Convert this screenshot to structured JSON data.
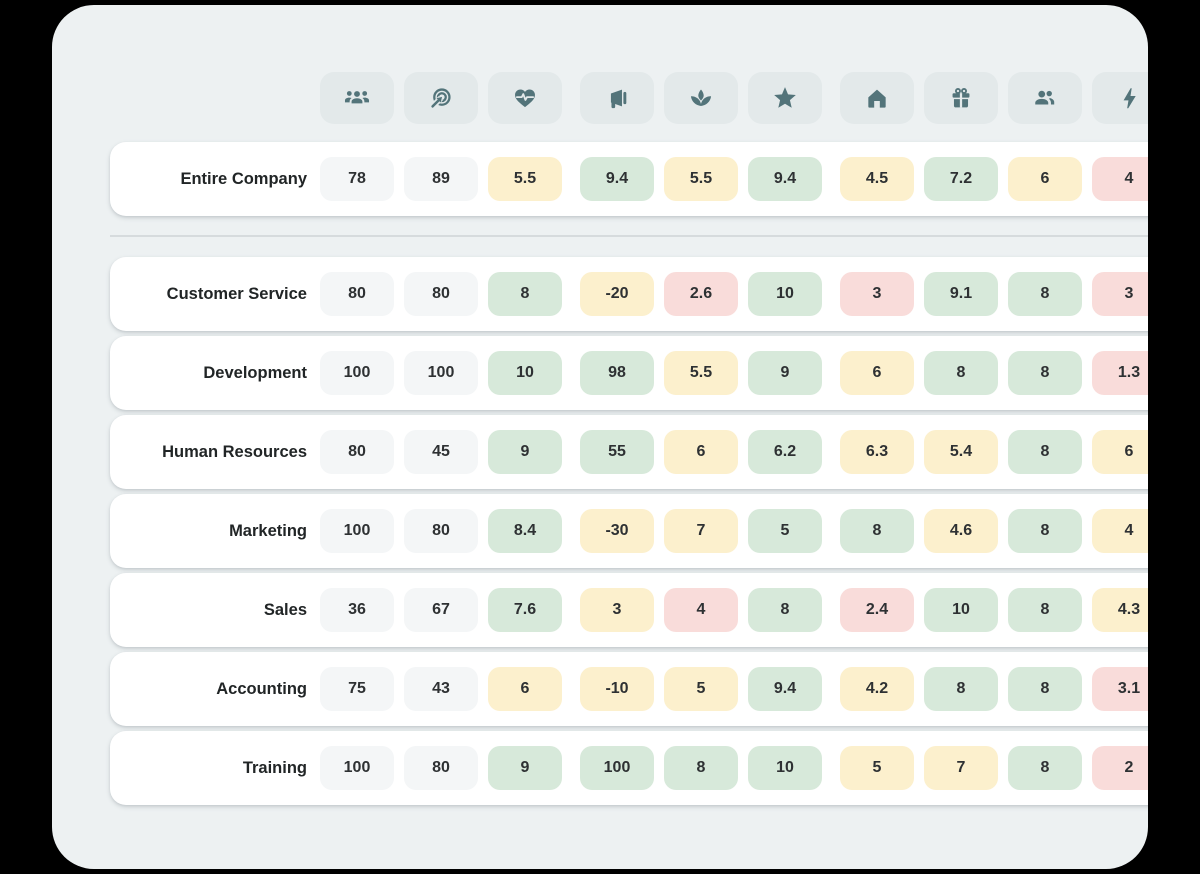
{
  "theme": {
    "background": "#000000",
    "panel_bg": "#edf1f2",
    "tile_bg": "#e3e9ea",
    "icon_color": "#53747a",
    "row_bg": "#ffffff",
    "divider_color": "#d6dbdd",
    "tone_colors": {
      "neutral": "#f4f6f7",
      "good": "#d7e9da",
      "warn": "#fcf0cd",
      "bad": "#f9dcda"
    }
  },
  "header": {
    "columns": [
      {
        "icon": "groups-icon",
        "group_start": false
      },
      {
        "icon": "target-icon",
        "group_start": false
      },
      {
        "icon": "heart-pulse-icon",
        "group_start": false
      },
      {
        "icon": "megaphone-icon",
        "group_start": true
      },
      {
        "icon": "spa-icon",
        "group_start": false
      },
      {
        "icon": "star-icon",
        "group_start": false
      },
      {
        "icon": "home-icon",
        "group_start": true
      },
      {
        "icon": "gift-icon",
        "group_start": false
      },
      {
        "icon": "people-icon",
        "group_start": false
      },
      {
        "icon": "bolt-icon",
        "group_start": false
      }
    ]
  },
  "rows": {
    "summary": {
      "label": "Entire Company",
      "cells": [
        {
          "value": "78",
          "tone": "neutral"
        },
        {
          "value": "89",
          "tone": "neutral"
        },
        {
          "value": "5.5",
          "tone": "warn"
        },
        {
          "value": "9.4",
          "tone": "good"
        },
        {
          "value": "5.5",
          "tone": "warn"
        },
        {
          "value": "9.4",
          "tone": "good"
        },
        {
          "value": "4.5",
          "tone": "warn"
        },
        {
          "value": "7.2",
          "tone": "good"
        },
        {
          "value": "6",
          "tone": "warn"
        },
        {
          "value": "4",
          "tone": "bad"
        }
      ]
    },
    "departments": [
      {
        "label": "Customer Service",
        "cells": [
          {
            "value": "80",
            "tone": "neutral"
          },
          {
            "value": "80",
            "tone": "neutral"
          },
          {
            "value": "8",
            "tone": "good"
          },
          {
            "value": "-20",
            "tone": "warn"
          },
          {
            "value": "2.6",
            "tone": "bad"
          },
          {
            "value": "10",
            "tone": "good"
          },
          {
            "value": "3",
            "tone": "bad"
          },
          {
            "value": "9.1",
            "tone": "good"
          },
          {
            "value": "8",
            "tone": "good"
          },
          {
            "value": "3",
            "tone": "bad"
          }
        ]
      },
      {
        "label": "Development",
        "cells": [
          {
            "value": "100",
            "tone": "neutral"
          },
          {
            "value": "100",
            "tone": "neutral"
          },
          {
            "value": "10",
            "tone": "good"
          },
          {
            "value": "98",
            "tone": "good"
          },
          {
            "value": "5.5",
            "tone": "warn"
          },
          {
            "value": "9",
            "tone": "good"
          },
          {
            "value": "6",
            "tone": "warn"
          },
          {
            "value": "8",
            "tone": "good"
          },
          {
            "value": "8",
            "tone": "good"
          },
          {
            "value": "1.3",
            "tone": "bad"
          }
        ]
      },
      {
        "label": "Human Resources",
        "cells": [
          {
            "value": "80",
            "tone": "neutral"
          },
          {
            "value": "45",
            "tone": "neutral"
          },
          {
            "value": "9",
            "tone": "good"
          },
          {
            "value": "55",
            "tone": "good"
          },
          {
            "value": "6",
            "tone": "warn"
          },
          {
            "value": "6.2",
            "tone": "good"
          },
          {
            "value": "6.3",
            "tone": "warn"
          },
          {
            "value": "5.4",
            "tone": "warn"
          },
          {
            "value": "8",
            "tone": "good"
          },
          {
            "value": "6",
            "tone": "warn"
          }
        ]
      },
      {
        "label": "Marketing",
        "cells": [
          {
            "value": "100",
            "tone": "neutral"
          },
          {
            "value": "80",
            "tone": "neutral"
          },
          {
            "value": "8.4",
            "tone": "good"
          },
          {
            "value": "-30",
            "tone": "warn"
          },
          {
            "value": "7",
            "tone": "warn"
          },
          {
            "value": "5",
            "tone": "good"
          },
          {
            "value": "8",
            "tone": "good"
          },
          {
            "value": "4.6",
            "tone": "warn"
          },
          {
            "value": "8",
            "tone": "good"
          },
          {
            "value": "4",
            "tone": "warn"
          }
        ]
      },
      {
        "label": "Sales",
        "cells": [
          {
            "value": "36",
            "tone": "neutral"
          },
          {
            "value": "67",
            "tone": "neutral"
          },
          {
            "value": "7.6",
            "tone": "good"
          },
          {
            "value": "3",
            "tone": "warn"
          },
          {
            "value": "4",
            "tone": "bad"
          },
          {
            "value": "8",
            "tone": "good"
          },
          {
            "value": "2.4",
            "tone": "bad"
          },
          {
            "value": "10",
            "tone": "good"
          },
          {
            "value": "8",
            "tone": "good"
          },
          {
            "value": "4.3",
            "tone": "warn"
          }
        ]
      },
      {
        "label": "Accounting",
        "cells": [
          {
            "value": "75",
            "tone": "neutral"
          },
          {
            "value": "43",
            "tone": "neutral"
          },
          {
            "value": "6",
            "tone": "warn"
          },
          {
            "value": "-10",
            "tone": "warn"
          },
          {
            "value": "5",
            "tone": "warn"
          },
          {
            "value": "9.4",
            "tone": "good"
          },
          {
            "value": "4.2",
            "tone": "warn"
          },
          {
            "value": "8",
            "tone": "good"
          },
          {
            "value": "8",
            "tone": "good"
          },
          {
            "value": "3.1",
            "tone": "bad"
          }
        ]
      },
      {
        "label": "Training",
        "cells": [
          {
            "value": "100",
            "tone": "neutral"
          },
          {
            "value": "80",
            "tone": "neutral"
          },
          {
            "value": "9",
            "tone": "good"
          },
          {
            "value": "100",
            "tone": "good"
          },
          {
            "value": "8",
            "tone": "good"
          },
          {
            "value": "10",
            "tone": "good"
          },
          {
            "value": "5",
            "tone": "warn"
          },
          {
            "value": "7",
            "tone": "warn"
          },
          {
            "value": "8",
            "tone": "good"
          },
          {
            "value": "2",
            "tone": "bad"
          }
        ]
      }
    ]
  }
}
